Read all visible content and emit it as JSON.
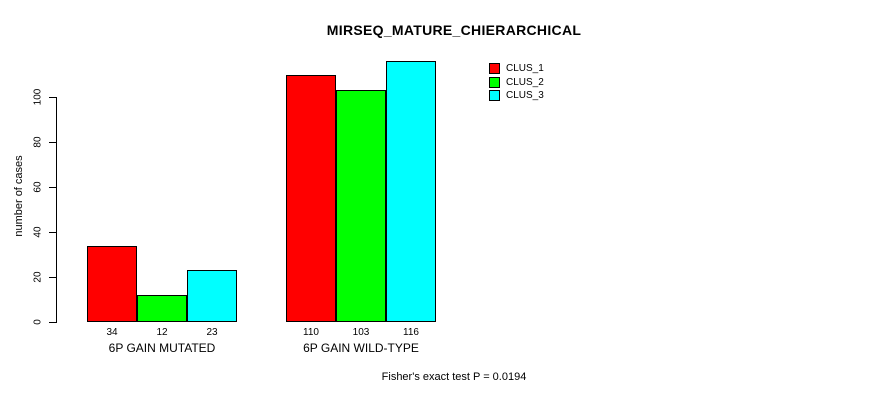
{
  "chart_data": {
    "type": "bar",
    "title": "MIRSEQ_MATURE_CHIERARCHICAL",
    "ylabel": "number of cases",
    "xlabel": "",
    "ylim": [
      0,
      120
    ],
    "yticks": [
      "0",
      "20",
      "40",
      "60",
      "80",
      "100"
    ],
    "categories": [
      "6P GAIN MUTATED",
      "6P GAIN WILD-TYPE"
    ],
    "series": [
      {
        "name": "CLUS_1",
        "color": "#ff0000",
        "values": [
          34,
          110
        ]
      },
      {
        "name": "CLUS_2",
        "color": "#00ff00",
        "values": [
          12,
          103
        ]
      },
      {
        "name": "CLUS_3",
        "color": "#00ffff",
        "values": [
          23,
          116
        ]
      }
    ],
    "bar_value_labels": [
      [
        "34",
        "12",
        "23"
      ],
      [
        "110",
        "103",
        "116"
      ]
    ],
    "annotation": "Fisher's exact test P = 0.0194",
    "legend_position": "top-right",
    "grid": false,
    "bar_border_color": "#000000",
    "background_color": "#ffffff"
  }
}
